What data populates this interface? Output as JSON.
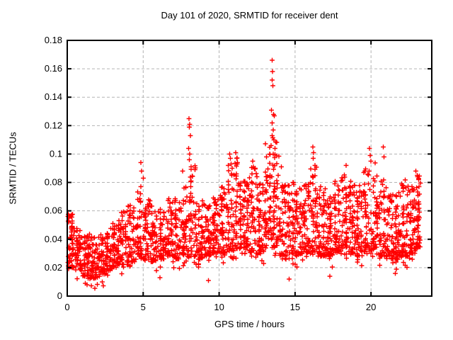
{
  "chart_data": {
    "type": "scatter",
    "title": "Day 101 of 2020, SRMTID for receiver dent",
    "xlabel": "GPS time / hours",
    "ylabel": "SRMTID / TECUs",
    "xlim": [
      0,
      24
    ],
    "ylim": [
      0,
      0.18
    ],
    "grid": true,
    "legend": "none",
    "marker": "plus",
    "colors": {
      "marker": "#ff0000",
      "grid": "#b3b3b3",
      "frame": "#000000"
    },
    "xticks": [
      {
        "v": 0,
        "label": "0"
      },
      {
        "v": 5,
        "label": "5"
      },
      {
        "v": 10,
        "label": "10"
      },
      {
        "v": 15,
        "label": "15"
      },
      {
        "v": 20,
        "label": "20"
      }
    ],
    "yticks": [
      {
        "v": 0.0,
        "label": "0"
      },
      {
        "v": 0.02,
        "label": "0.02"
      },
      {
        "v": 0.04,
        "label": "0.04"
      },
      {
        "v": 0.06,
        "label": "0.06"
      },
      {
        "v": 0.08,
        "label": "0.08"
      },
      {
        "v": 0.1,
        "label": "0.1"
      },
      {
        "v": 0.12,
        "label": "0.12"
      },
      {
        "v": 0.14,
        "label": "0.14"
      },
      {
        "v": 0.16,
        "label": "0.16"
      },
      {
        "v": 0.18,
        "label": "0.18"
      }
    ],
    "seed": 7,
    "band_format": [
      "t_start_hours",
      "t_end_hours",
      "n_points",
      "y_low_TECUs",
      "y_high_TECUs"
    ],
    "band": [
      [
        0.0,
        0.5,
        55,
        0.02,
        0.058
      ],
      [
        0.5,
        1.0,
        55,
        0.018,
        0.048
      ],
      [
        1.0,
        1.5,
        55,
        0.014,
        0.044
      ],
      [
        1.5,
        2.0,
        55,
        0.012,
        0.042
      ],
      [
        2.0,
        2.5,
        50,
        0.015,
        0.044
      ],
      [
        2.5,
        3.0,
        50,
        0.018,
        0.048
      ],
      [
        3.0,
        3.5,
        50,
        0.02,
        0.054
      ],
      [
        3.5,
        4.0,
        50,
        0.022,
        0.06
      ],
      [
        4.0,
        4.5,
        50,
        0.024,
        0.064
      ],
      [
        4.5,
        5.0,
        50,
        0.026,
        0.078
      ],
      [
        5.0,
        5.5,
        50,
        0.026,
        0.07
      ],
      [
        5.5,
        6.0,
        50,
        0.024,
        0.064
      ],
      [
        6.0,
        6.5,
        50,
        0.026,
        0.066
      ],
      [
        6.5,
        7.0,
        50,
        0.028,
        0.07
      ],
      [
        7.0,
        7.5,
        50,
        0.026,
        0.07
      ],
      [
        7.5,
        8.0,
        52,
        0.028,
        0.078
      ],
      [
        8.0,
        8.5,
        52,
        0.028,
        0.092
      ],
      [
        8.5,
        9.0,
        50,
        0.026,
        0.068
      ],
      [
        9.0,
        9.5,
        52,
        0.028,
        0.066
      ],
      [
        9.5,
        10.0,
        52,
        0.03,
        0.07
      ],
      [
        10.0,
        10.5,
        52,
        0.03,
        0.078
      ],
      [
        10.5,
        11.0,
        52,
        0.032,
        0.092
      ],
      [
        11.0,
        11.5,
        52,
        0.032,
        0.098
      ],
      [
        11.5,
        12.0,
        52,
        0.03,
        0.082
      ],
      [
        12.0,
        12.5,
        52,
        0.03,
        0.092
      ],
      [
        12.5,
        13.0,
        52,
        0.03,
        0.082
      ],
      [
        13.0,
        13.5,
        56,
        0.034,
        0.108
      ],
      [
        13.5,
        14.0,
        56,
        0.034,
        0.112
      ],
      [
        14.0,
        14.5,
        52,
        0.028,
        0.078
      ],
      [
        14.5,
        15.0,
        52,
        0.03,
        0.082
      ],
      [
        15.0,
        15.5,
        52,
        0.028,
        0.078
      ],
      [
        15.5,
        16.0,
        52,
        0.03,
        0.082
      ],
      [
        16.0,
        16.5,
        52,
        0.03,
        0.092
      ],
      [
        16.5,
        17.0,
        52,
        0.028,
        0.078
      ],
      [
        17.0,
        17.5,
        52,
        0.028,
        0.074
      ],
      [
        17.5,
        18.0,
        52,
        0.03,
        0.082
      ],
      [
        18.0,
        18.5,
        52,
        0.028,
        0.086
      ],
      [
        18.5,
        19.0,
        52,
        0.03,
        0.082
      ],
      [
        19.0,
        19.5,
        52,
        0.028,
        0.078
      ],
      [
        19.5,
        20.0,
        52,
        0.03,
        0.092
      ],
      [
        20.0,
        20.5,
        52,
        0.032,
        0.096
      ],
      [
        20.5,
        21.0,
        52,
        0.028,
        0.082
      ],
      [
        21.0,
        21.5,
        52,
        0.026,
        0.072
      ],
      [
        21.5,
        22.0,
        52,
        0.026,
        0.076
      ],
      [
        22.0,
        22.5,
        56,
        0.028,
        0.082
      ],
      [
        22.5,
        23.0,
        62,
        0.03,
        0.078
      ],
      [
        23.0,
        23.25,
        40,
        0.034,
        0.086
      ]
    ],
    "outliers": [
      [
        0.05,
        0.056
      ],
      [
        0.1,
        0.052
      ],
      [
        4.85,
        0.094
      ],
      [
        4.9,
        0.088
      ],
      [
        5.0,
        0.083
      ],
      [
        7.6,
        0.088
      ],
      [
        8.02,
        0.125
      ],
      [
        8.07,
        0.121
      ],
      [
        8.04,
        0.119
      ],
      [
        8.1,
        0.113
      ],
      [
        8.0,
        0.104
      ],
      [
        8.06,
        0.1
      ],
      [
        8.03,
        0.096
      ],
      [
        10.7,
        0.1
      ],
      [
        10.74,
        0.097
      ],
      [
        10.78,
        0.093
      ],
      [
        10.85,
        0.09
      ],
      [
        11.1,
        0.101
      ],
      [
        11.15,
        0.097
      ],
      [
        11.2,
        0.094
      ],
      [
        12.2,
        0.095
      ],
      [
        12.26,
        0.091
      ],
      [
        13.5,
        0.166
      ],
      [
        13.52,
        0.158
      ],
      [
        13.48,
        0.152
      ],
      [
        13.53,
        0.148
      ],
      [
        13.45,
        0.131
      ],
      [
        13.58,
        0.128
      ],
      [
        13.62,
        0.127
      ],
      [
        13.5,
        0.122
      ],
      [
        13.55,
        0.117
      ],
      [
        13.5,
        0.113
      ],
      [
        13.6,
        0.11
      ],
      [
        13.42,
        0.106
      ],
      [
        13.68,
        0.104
      ],
      [
        13.56,
        0.1
      ],
      [
        14.1,
        0.091
      ],
      [
        16.18,
        0.105
      ],
      [
        16.22,
        0.101
      ],
      [
        16.2,
        0.097
      ],
      [
        16.3,
        0.092
      ],
      [
        18.35,
        0.092
      ],
      [
        19.9,
        0.104
      ],
      [
        19.95,
        0.099
      ],
      [
        20.0,
        0.095
      ],
      [
        20.8,
        0.105
      ],
      [
        20.85,
        0.098
      ],
      [
        22.95,
        0.088
      ],
      [
        23.05,
        0.085
      ],
      [
        1.3,
        0.008
      ],
      [
        2.3,
        0.01
      ],
      [
        6.1,
        0.013
      ],
      [
        9.3,
        0.011
      ],
      [
        14.6,
        0.012
      ],
      [
        17.3,
        0.014
      ],
      [
        21.6,
        0.016
      ]
    ]
  }
}
